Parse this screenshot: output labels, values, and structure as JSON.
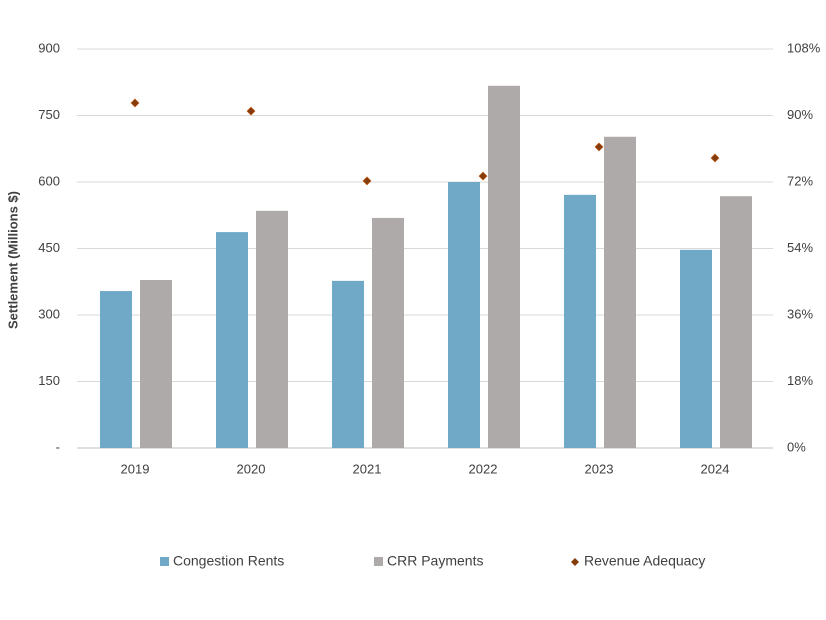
{
  "chart_data": {
    "type": "bar",
    "y_label": "Settlement (Millions  $)",
    "categories": [
      "2019",
      "2020",
      "2021",
      "2022",
      "2023",
      "2024"
    ],
    "series": [
      {
        "name": "Congestion Rents",
        "color": "#70a9c8",
        "values": [
          354,
          487,
          377,
          600,
          571,
          447
        ]
      },
      {
        "name": "CRR Payments",
        "color": "#aeaaaa",
        "values": [
          379,
          535,
          519,
          817,
          702,
          568
        ]
      },
      {
        "name": "Revenue Adequacy",
        "color": "#843c0c",
        "type": "scatter",
        "axis": "y2",
        "values": [
          93.4,
          91.2,
          72.3,
          73.6,
          81.5,
          78.5
        ]
      }
    ],
    "ylim": [
      0,
      900
    ],
    "yticks": [
      {
        "value": 0,
        "label": "-"
      },
      150,
      300,
      450,
      600,
      750,
      900
    ],
    "y2lim": [
      0,
      108
    ],
    "y2ticks": [
      {
        "value": 0,
        "label": "0%"
      },
      {
        "value": 18,
        "label": "18%"
      },
      {
        "value": 36,
        "label": "36%"
      },
      {
        "value": 54,
        "label": "54%"
      },
      {
        "value": 72,
        "label": "72%"
      },
      {
        "value": 90,
        "label": "90%"
      },
      {
        "value": 108,
        "label": "108%"
      }
    ],
    "grid": true,
    "legend": "bottom"
  }
}
